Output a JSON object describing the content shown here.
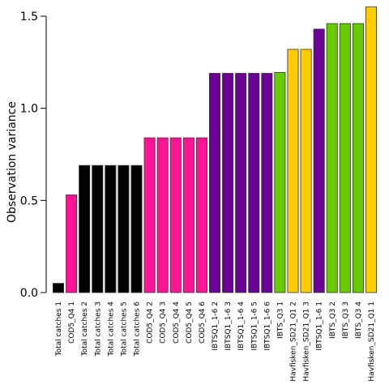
{
  "chart_data": {
    "type": "bar",
    "title": "",
    "xlabel": "",
    "ylabel": "Observation variance",
    "ylim": [
      0,
      1.55
    ],
    "yticks": [
      "0.0",
      "0.5",
      "1.0",
      "1.5"
    ],
    "grid": false,
    "legend": "none",
    "categories": [
      "Total catches 1",
      "COD5_Q4 1",
      "Total catches 2",
      "Total catches 3",
      "Total catches 4",
      "Total catches 5",
      "Total catches 6",
      "COD5_Q4 2",
      "COD5_Q4 3",
      "COD5_Q4 4",
      "COD5_Q4 5",
      "COD5_Q4 6",
      "IBTSQ1_1-6 2",
      "IBTSQ1_1-6 3",
      "IBTSQ1_1-6 4",
      "IBTSQ1_1-6 5",
      "IBTSQ1_1-6 6",
      "IBTS_Q3 1",
      "Havfisken_SD21_Q1 2",
      "Havfisken_SD21_Q1 3",
      "IBTSQ1_1-6 1",
      "IBTS_Q3 2",
      "IBTS_Q3 3",
      "IBTS_Q3 4",
      "Havfisken_SD21_Q1 1"
    ],
    "values": [
      0.05,
      0.53,
      0.69,
      0.69,
      0.69,
      0.69,
      0.69,
      0.84,
      0.84,
      0.84,
      0.84,
      0.84,
      1.19,
      1.19,
      1.19,
      1.19,
      1.19,
      1.195,
      1.32,
      1.32,
      1.43,
      1.46,
      1.46,
      1.46,
      1.55
    ],
    "colors": [
      "#000000",
      "#ff1493",
      "#000000",
      "#000000",
      "#000000",
      "#000000",
      "#000000",
      "#ff1493",
      "#ff1493",
      "#ff1493",
      "#ff1493",
      "#ff1493",
      "#6a0096",
      "#6a0096",
      "#6a0096",
      "#6a0096",
      "#6a0096",
      "#66cc00",
      "#ffcc00",
      "#ffcc00",
      "#6a0096",
      "#66cc00",
      "#66cc00",
      "#66cc00",
      "#ffcc00"
    ]
  }
}
